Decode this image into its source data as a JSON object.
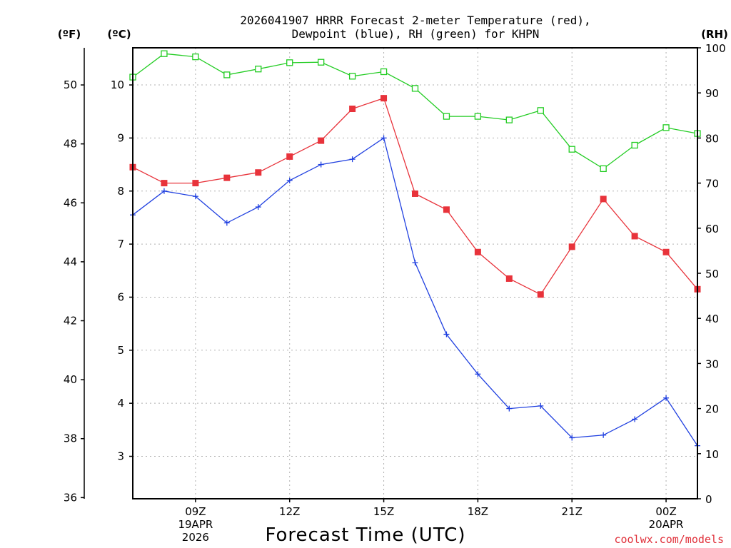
{
  "chart_data": {
    "type": "line",
    "title_line1": "2026041907 HRRR Forecast 2-meter Temperature (red),",
    "title_line2": "Dewpoint (blue), RH (green) for KHPN",
    "unit_f": "(ºF)",
    "unit_c": "(ºC)",
    "unit_rh": "(RH)",
    "xlabel": "Forecast Time (UTC)",
    "credit": "coolwx.com/models",
    "x_hours": [
      7,
      8,
      9,
      10,
      11,
      12,
      13,
      14,
      15,
      16,
      17,
      18,
      19,
      20,
      21,
      22,
      23,
      24,
      25
    ],
    "xlim": [
      7,
      25
    ],
    "x_ticks": [
      {
        "hour": 9,
        "lines": [
          "09Z",
          "19APR",
          "2026"
        ]
      },
      {
        "hour": 12,
        "lines": [
          "12Z"
        ]
      },
      {
        "hour": 15,
        "lines": [
          "15Z"
        ]
      },
      {
        "hour": 18,
        "lines": [
          "18Z"
        ]
      },
      {
        "hour": 21,
        "lines": [
          "21Z"
        ]
      },
      {
        "hour": 24,
        "lines": [
          "00Z",
          "20APR"
        ]
      }
    ],
    "c_lim": [
      2.2,
      10.7
    ],
    "c_ticks": [
      3,
      4,
      5,
      6,
      7,
      8,
      9,
      10
    ],
    "f_ticks": [
      36,
      38,
      40,
      42,
      44,
      46,
      48,
      50
    ],
    "rh_lim": [
      0,
      100
    ],
    "rh_ticks": [
      0,
      10,
      20,
      30,
      40,
      50,
      60,
      70,
      80,
      90,
      100
    ],
    "series": [
      {
        "name": "Temperature",
        "axis": "C",
        "color": "#e8333b",
        "marker": "filled-square",
        "values": [
          8.45,
          8.15,
          8.15,
          8.25,
          8.35,
          8.65,
          8.95,
          9.55,
          9.75,
          7.95,
          7.65,
          6.85,
          6.35,
          6.05,
          6.95,
          7.85,
          7.15,
          6.85,
          6.15
        ]
      },
      {
        "name": "Dewpoint",
        "axis": "C",
        "color": "#2040e0",
        "marker": "plus",
        "values": [
          7.55,
          8.0,
          7.9,
          7.4,
          7.7,
          8.2,
          8.5,
          8.6,
          9.0,
          6.65,
          5.3,
          4.55,
          3.9,
          3.95,
          3.35,
          3.4,
          3.7,
          4.1,
          3.2
        ]
      },
      {
        "name": "RH",
        "axis": "RH",
        "color": "#22cc22",
        "marker": "open-square",
        "values": [
          93.5,
          98.7,
          98.0,
          94.0,
          95.3,
          96.7,
          96.8,
          93.7,
          94.7,
          91.0,
          84.8,
          84.8,
          84.0,
          86.1,
          77.5,
          73.2,
          78.4,
          82.3,
          81.0
        ]
      }
    ]
  }
}
